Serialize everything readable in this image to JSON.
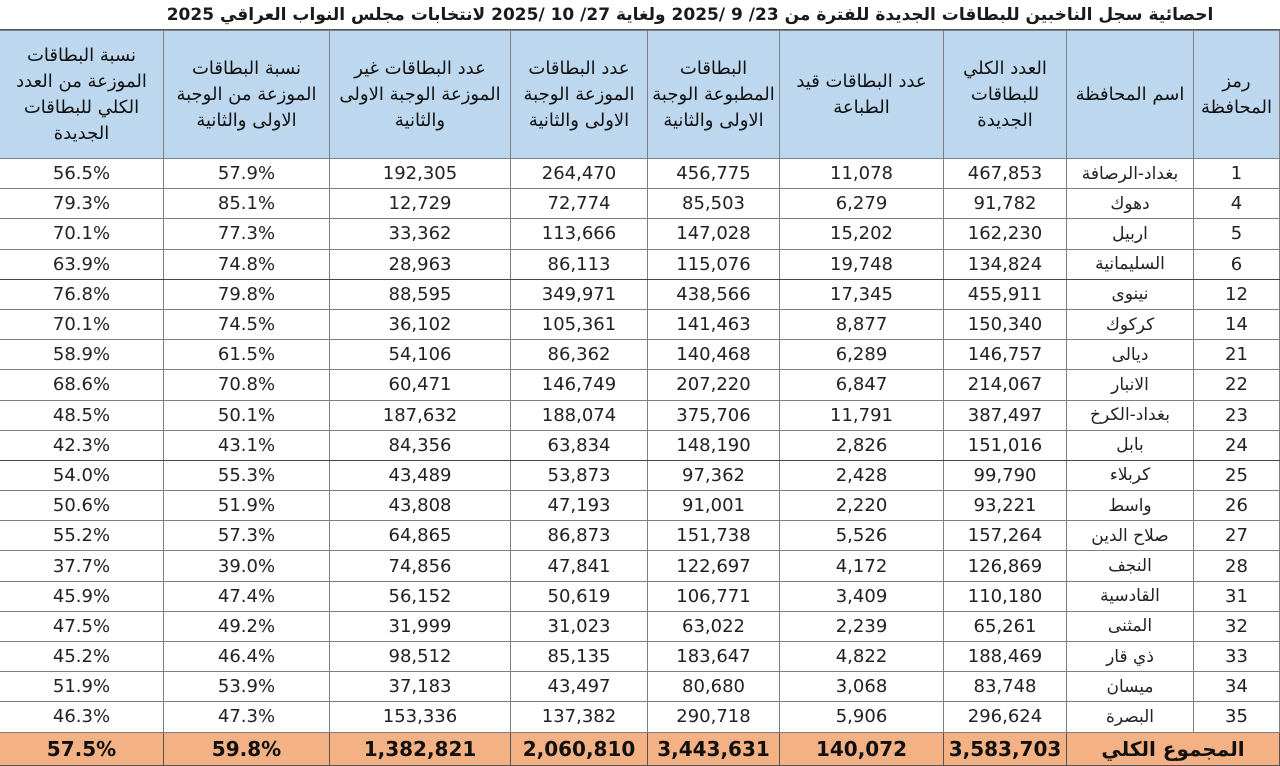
{
  "title": "احصائية سجل الناخبين للبطاقات الجديدة للفترة من  23/ 9 /2025 ولغاية  27/ 10 /2025 لانتخابات مجلس النواب العراقي 2025",
  "table": {
    "headers": [
      "رمز المحافظة",
      "اسم المحافظة",
      "العدد الكلي للبطاقات الجديدة",
      "عدد البطاقات قيد الطباعة",
      "البطاقات المطبوعة الوجبة الاولى والثانية",
      "عدد البطاقات الموزعة الوجبة الاولى والثانية",
      "عدد البطاقات غير الموزعة الوجبة الاولى والثانية",
      "نسبة البطاقات الموزعة من الوجبة الاولى والثانية",
      "نسبة البطاقات الموزعة من العدد الكلي للبطاقات الجديدة"
    ],
    "rows": [
      {
        "code": "1",
        "name": "بغداد-الرصافة",
        "total": "467,853",
        "printing": "11,078",
        "printed": "456,775",
        "distributed": "264,470",
        "undistributed": "192,305",
        "pct_batches": "57.9%",
        "pct_total": "56.5%"
      },
      {
        "code": "4",
        "name": "دهوك",
        "total": "91,782",
        "printing": "6,279",
        "printed": "85,503",
        "distributed": "72,774",
        "undistributed": "12,729",
        "pct_batches": "85.1%",
        "pct_total": "79.3%"
      },
      {
        "code": "5",
        "name": "اربيل",
        "total": "162,230",
        "printing": "15,202",
        "printed": "147,028",
        "distributed": "113,666",
        "undistributed": "33,362",
        "pct_batches": "77.3%",
        "pct_total": "70.1%"
      },
      {
        "code": "6",
        "name": "السليمانية",
        "total": "134,824",
        "printing": "19,748",
        "printed": "115,076",
        "distributed": "86,113",
        "undistributed": "28,963",
        "pct_batches": "74.8%",
        "pct_total": "63.9%"
      },
      {
        "code": "12",
        "name": "نينوى",
        "total": "455,911",
        "printing": "17,345",
        "printed": "438,566",
        "distributed": "349,971",
        "undistributed": "88,595",
        "pct_batches": "79.8%",
        "pct_total": "76.8%"
      },
      {
        "code": "14",
        "name": "كركوك",
        "total": "150,340",
        "printing": "8,877",
        "printed": "141,463",
        "distributed": "105,361",
        "undistributed": "36,102",
        "pct_batches": "74.5%",
        "pct_total": "70.1%"
      },
      {
        "code": "21",
        "name": "ديالى",
        "total": "146,757",
        "printing": "6,289",
        "printed": "140,468",
        "distributed": "86,362",
        "undistributed": "54,106",
        "pct_batches": "61.5%",
        "pct_total": "58.9%"
      },
      {
        "code": "22",
        "name": "الانبار",
        "total": "214,067",
        "printing": "6,847",
        "printed": "207,220",
        "distributed": "146,749",
        "undistributed": "60,471",
        "pct_batches": "70.8%",
        "pct_total": "68.6%"
      },
      {
        "code": "23",
        "name": "بغداد-الكرخ",
        "total": "387,497",
        "printing": "11,791",
        "printed": "375,706",
        "distributed": "188,074",
        "undistributed": "187,632",
        "pct_batches": "50.1%",
        "pct_total": "48.5%"
      },
      {
        "code": "24",
        "name": "بابل",
        "total": "151,016",
        "printing": "2,826",
        "printed": "148,190",
        "distributed": "63,834",
        "undistributed": "84,356",
        "pct_batches": "43.1%",
        "pct_total": "42.3%"
      },
      {
        "code": "25",
        "name": "كربلاء",
        "total": "99,790",
        "printing": "2,428",
        "printed": "97,362",
        "distributed": "53,873",
        "undistributed": "43,489",
        "pct_batches": "55.3%",
        "pct_total": "54.0%"
      },
      {
        "code": "26",
        "name": "واسط",
        "total": "93,221",
        "printing": "2,220",
        "printed": "91,001",
        "distributed": "47,193",
        "undistributed": "43,808",
        "pct_batches": "51.9%",
        "pct_total": "50.6%"
      },
      {
        "code": "27",
        "name": "صلاح الدين",
        "total": "157,264",
        "printing": "5,526",
        "printed": "151,738",
        "distributed": "86,873",
        "undistributed": "64,865",
        "pct_batches": "57.3%",
        "pct_total": "55.2%"
      },
      {
        "code": "28",
        "name": "النجف",
        "total": "126,869",
        "printing": "4,172",
        "printed": "122,697",
        "distributed": "47,841",
        "undistributed": "74,856",
        "pct_batches": "39.0%",
        "pct_total": "37.7%"
      },
      {
        "code": "31",
        "name": "القادسية",
        "total": "110,180",
        "printing": "3,409",
        "printed": "106,771",
        "distributed": "50,619",
        "undistributed": "56,152",
        "pct_batches": "47.4%",
        "pct_total": "45.9%"
      },
      {
        "code": "32",
        "name": "المثنى",
        "total": "65,261",
        "printing": "2,239",
        "printed": "63,022",
        "distributed": "31,023",
        "undistributed": "31,999",
        "pct_batches": "49.2%",
        "pct_total": "47.5%"
      },
      {
        "code": "33",
        "name": "ذي قار",
        "total": "188,469",
        "printing": "4,822",
        "printed": "183,647",
        "distributed": "85,135",
        "undistributed": "98,512",
        "pct_batches": "46.4%",
        "pct_total": "45.2%"
      },
      {
        "code": "34",
        "name": "ميسان",
        "total": "83,748",
        "printing": "3,068",
        "printed": "80,680",
        "distributed": "43,497",
        "undistributed": "37,183",
        "pct_batches": "53.9%",
        "pct_total": "51.9%"
      },
      {
        "code": "35",
        "name": "البصرة",
        "total": "296,624",
        "printing": "5,906",
        "printed": "290,718",
        "distributed": "137,382",
        "undistributed": "153,336",
        "pct_batches": "47.3%",
        "pct_total": "46.3%"
      }
    ],
    "footer": {
      "label": "المجموع الكلي",
      "total": "3,583,703",
      "printing": "140,072",
      "printed": "3,443,631",
      "distributed": "2,060,810",
      "undistributed": "1,382,821",
      "pct_batches": "59.8%",
      "pct_total": "57.5%"
    }
  },
  "colors": {
    "header_bg": "#bdd7ee",
    "footer_bg": "#f4b183",
    "border": "#7f7f7f"
  }
}
